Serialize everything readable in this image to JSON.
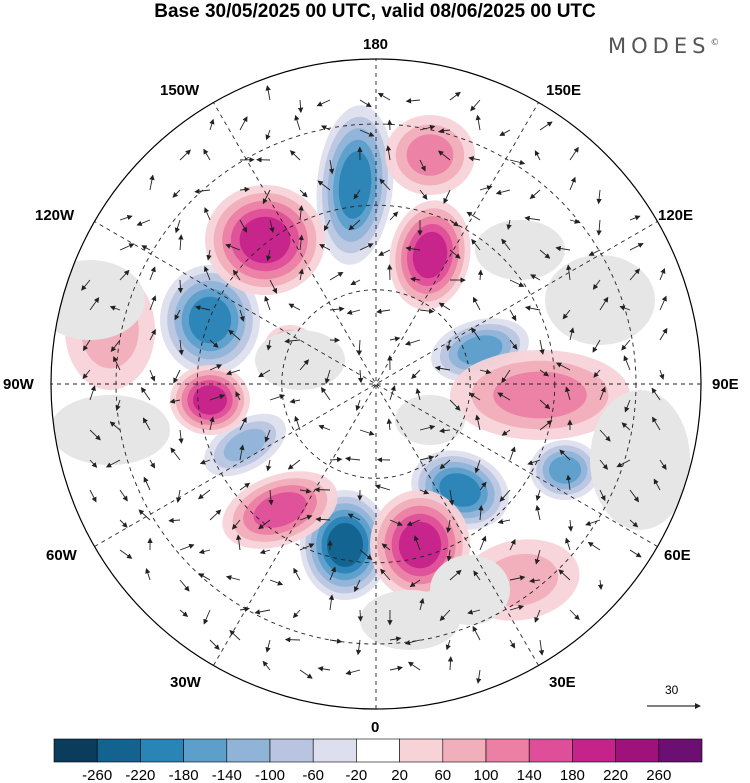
{
  "header": {
    "title": "Base 30/05/2025 00 UTC, valid 08/06/2025 00 UTC",
    "brand": "MODES",
    "brand_mark": "©"
  },
  "map": {
    "projection": "north-polar-stereographic",
    "longitude_labels": {
      "deg180": "180",
      "deg150e": "150E",
      "deg120e": "120E",
      "deg90e": "90E",
      "deg60e": "60E",
      "deg30e": "30E",
      "deg0": "0",
      "deg30w": "30W",
      "deg60w": "60W",
      "deg90w": "90W",
      "deg120w": "120W",
      "deg150w": "150W"
    },
    "reference_vector": "30",
    "grid_lines": "dashed"
  },
  "colorbar": {
    "ticks": [
      "-260",
      "-220",
      "-180",
      "-140",
      "-100",
      "-60",
      "-20",
      "20",
      "60",
      "100",
      "140",
      "180",
      "220",
      "260"
    ],
    "colors": [
      "#0a3d5c",
      "#13628f",
      "#2a84b6",
      "#5d9fcb",
      "#8fb4d8",
      "#b9c5e0",
      "#dedfee",
      "#ffffff",
      "#f7d3d8",
      "#f1aebb",
      "#eb7fa4",
      "#df4f99",
      "#c5238a",
      "#a0127b",
      "#6b0f73"
    ]
  }
}
